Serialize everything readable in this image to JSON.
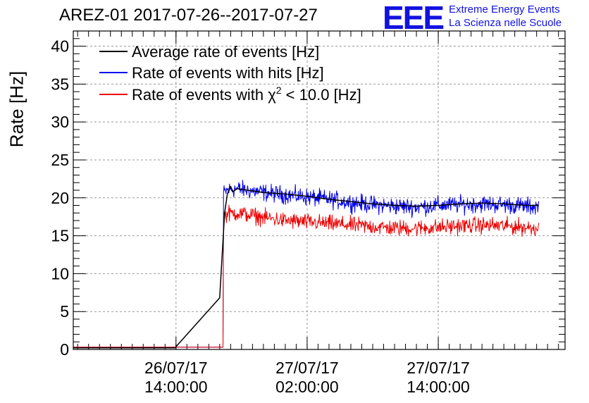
{
  "header": {
    "title": "AREZ-01 2017-07-26--2017-07-27",
    "logo_text": "EEE",
    "brand_line1": "Extreme Energy Events",
    "brand_line2": "La Scienza nelle Scuole"
  },
  "colors": {
    "average": "#000000",
    "hits": "#0000ee",
    "chi2": "#ee0000",
    "logo": "#1212e0",
    "grid": "#999999"
  },
  "chart_data": {
    "type": "line",
    "title": "AREZ-01 2017-07-26--2017-07-27",
    "xlabel": "",
    "ylabel": "Rate [Hz]",
    "x_unit": "hours since 2017-07-26 00:00:00",
    "xlim": [
      4.6,
      49.6
    ],
    "ylim": [
      0,
      42
    ],
    "yticks": [
      0,
      5,
      10,
      15,
      20,
      25,
      30,
      35,
      40
    ],
    "xticks": [
      {
        "value": 14,
        "line1": "26/07/17",
        "line2": "14:00:00"
      },
      {
        "value": 26,
        "line1": "27/07/17",
        "line2": "02:00:00"
      },
      {
        "value": 38,
        "line1": "27/07/17",
        "line2": "14:00:00"
      }
    ],
    "grid": true,
    "legend_position": "top-left",
    "series": [
      {
        "key": "average",
        "name": "Average rate of events [Hz]",
        "x": [
          4.6,
          13.9,
          18.0,
          18.45,
          18.7,
          19.0,
          19.2,
          19.6,
          20.5,
          22,
          24,
          26,
          28,
          30,
          32,
          34,
          36,
          38,
          40,
          42,
          44,
          46,
          47.2
        ],
        "y": [
          0.2,
          0.2,
          6.8,
          18.0,
          20.5,
          21.5,
          20.8,
          21.2,
          21.0,
          20.7,
          20.5,
          20.2,
          19.8,
          19.5,
          19.2,
          19.0,
          18.9,
          19.0,
          19.2,
          19.3,
          19.2,
          19.0,
          19.0
        ]
      },
      {
        "key": "hits",
        "name": "Rate of events with hits [Hz]",
        "x": [
          4.6,
          18.3,
          18.35,
          18.7,
          19.5,
          20.5,
          22,
          24,
          26,
          28,
          30,
          32,
          34,
          36,
          38,
          40,
          42,
          44,
          46,
          47.2
        ],
        "y": [
          0.3,
          0.3,
          20.6,
          21.0,
          21.2,
          21.0,
          20.7,
          20.4,
          20.1,
          19.8,
          19.4,
          19.1,
          18.9,
          18.8,
          19.0,
          19.1,
          19.2,
          19.1,
          18.9,
          18.8
        ],
        "noise": 0.8
      },
      {
        "key": "chi2",
        "name": "Rate of events with χ² < 10.0 [Hz]",
        "name_parts": [
          "Rate of events with χ",
          "2",
          " < 10.0 [Hz]"
        ],
        "x": [
          4.6,
          18.3,
          18.35,
          18.7,
          19.5,
          20.5,
          22,
          24,
          26,
          28,
          30,
          32,
          34,
          36,
          38,
          40,
          42,
          44,
          46,
          47.2
        ],
        "y": [
          0.3,
          0.3,
          17.5,
          17.9,
          18.0,
          17.8,
          17.4,
          17.0,
          16.8,
          16.6,
          16.4,
          16.2,
          16.0,
          16.0,
          16.1,
          16.3,
          16.4,
          16.3,
          16.1,
          16.0
        ],
        "noise": 0.75
      }
    ]
  }
}
